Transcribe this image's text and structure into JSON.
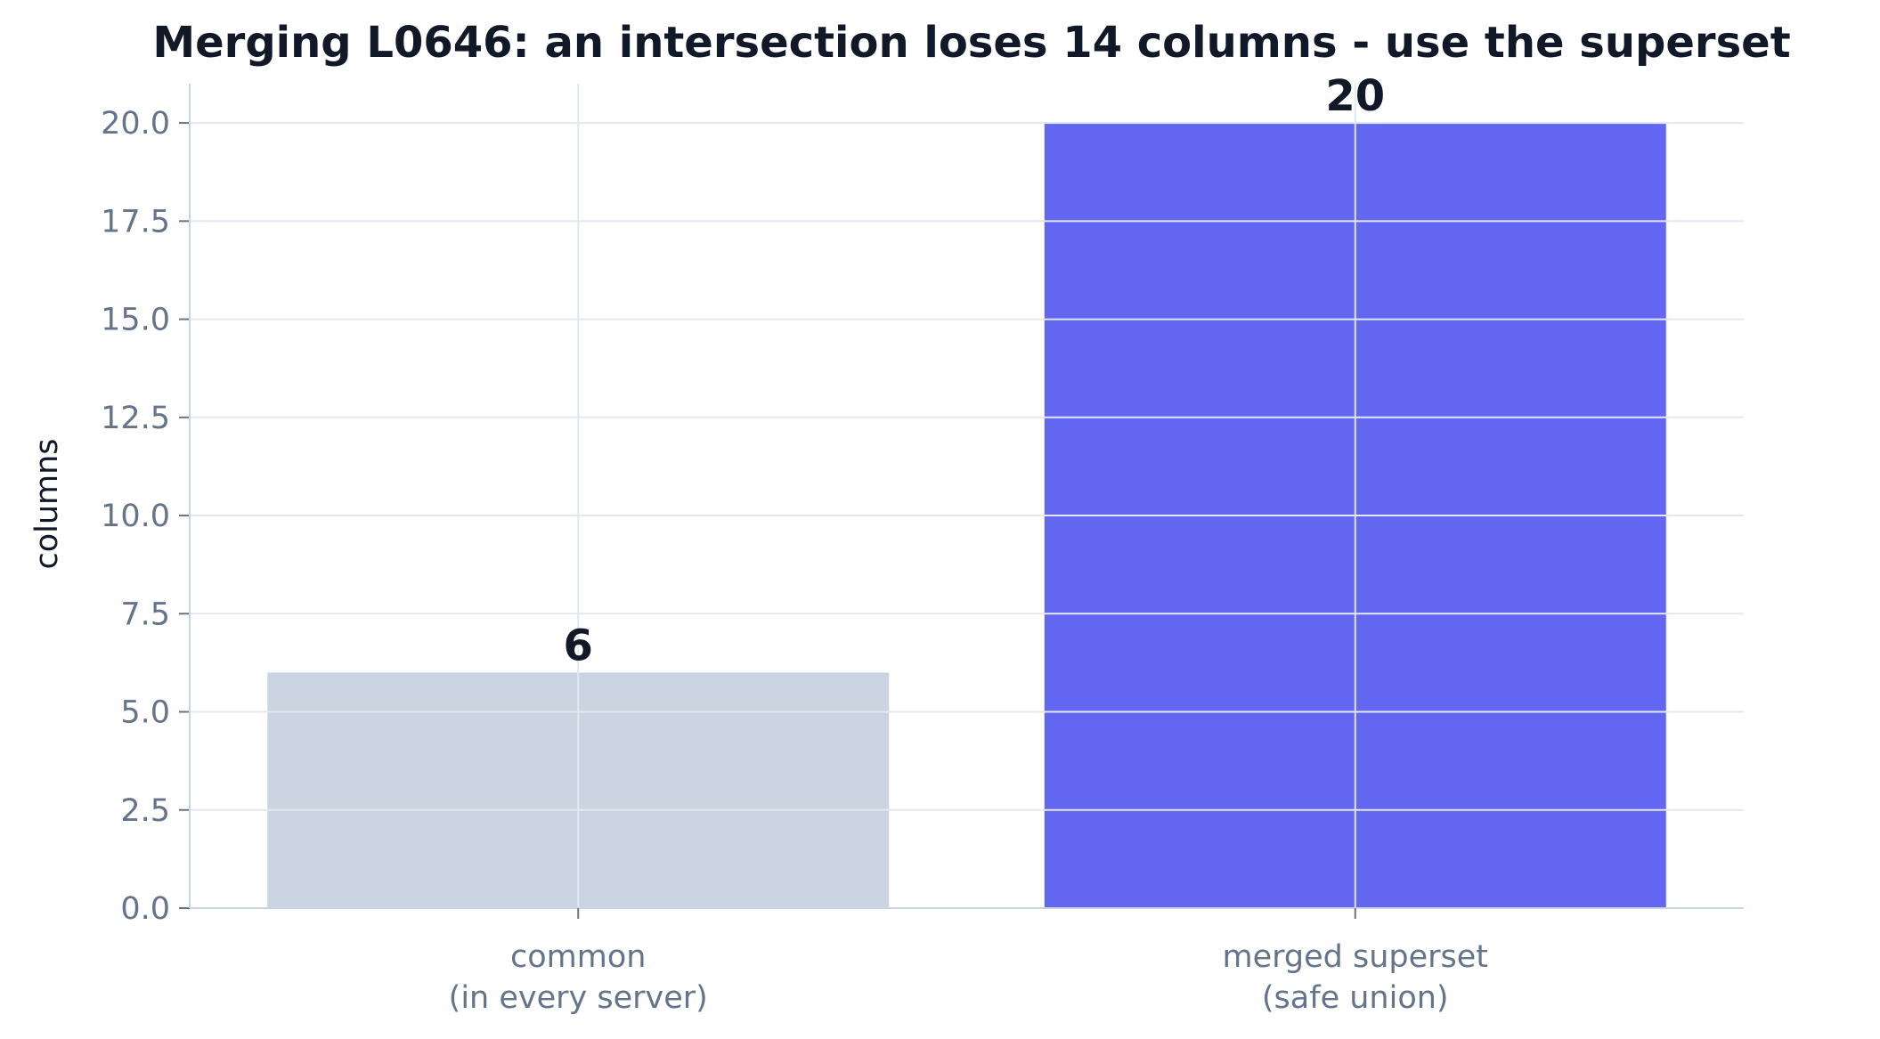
{
  "chart_data": {
    "type": "bar",
    "title": "Merging L0646: an intersection loses 14 columns - use the superset",
    "xlabel": "",
    "ylabel": "columns",
    "categories": [
      [
        "common",
        "(in every server)"
      ],
      [
        "merged superset",
        "(safe union)"
      ]
    ],
    "values": [
      6,
      20
    ],
    "value_labels": [
      "6",
      "20"
    ],
    "ylim": [
      0,
      21
    ],
    "yticks": [
      0,
      2.5,
      5,
      7.5,
      10,
      12.5,
      15,
      17.5,
      20
    ],
    "ytick_labels": [
      "0.0",
      "2.5",
      "5.0",
      "7.5",
      "10.0",
      "12.5",
      "15.0",
      "17.5",
      "20.0"
    ],
    "grid": true,
    "colors": [
      "#cbd5e1",
      "#6366f1"
    ],
    "grid_color": "#e2e8f0",
    "axis_color": "#cbd5e1",
    "text_color": "#111827",
    "tick_color": "#64748b"
  }
}
